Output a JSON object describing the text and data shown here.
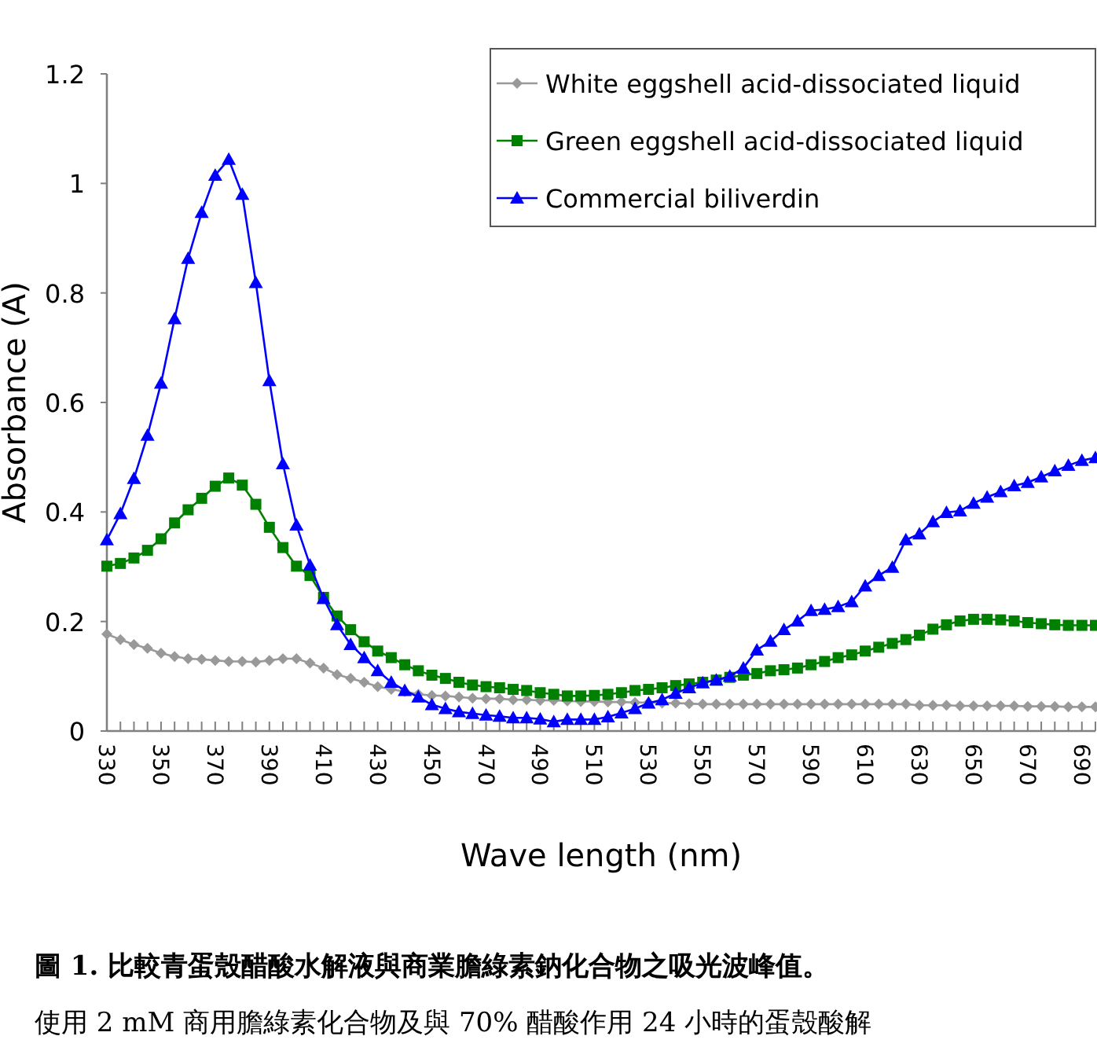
{
  "chart_data": {
    "type": "line",
    "xlabel": "Wave length (nm)",
    "ylabel": "Absorbance (A)",
    "x": [
      330,
      335,
      340,
      345,
      350,
      355,
      360,
      365,
      370,
      375,
      380,
      385,
      390,
      395,
      400,
      405,
      410,
      415,
      420,
      425,
      430,
      435,
      440,
      445,
      450,
      455,
      460,
      465,
      470,
      475,
      480,
      485,
      490,
      495,
      500,
      505,
      510,
      515,
      520,
      525,
      530,
      535,
      540,
      545,
      550,
      555,
      560,
      565,
      570,
      575,
      580,
      585,
      590,
      595,
      600,
      605,
      610,
      615,
      620,
      625,
      630,
      635,
      640,
      645,
      650,
      655,
      660,
      665,
      670,
      675,
      680,
      685,
      690,
      695
    ],
    "xlim": [
      330,
      695
    ],
    "xticks": [
      330,
      {
        "value": 335,
        "label": null
      },
      {
        "value": 340,
        "label": null
      },
      {
        "value": 345,
        "label": null
      },
      350,
      {
        "value": 355,
        "label": null
      },
      {
        "value": 360,
        "label": null
      },
      {
        "value": 365,
        "label": null
      },
      370,
      {
        "value": 375,
        "label": null
      },
      {
        "value": 380,
        "label": null
      },
      {
        "value": 385,
        "label": null
      },
      390,
      {
        "value": 395,
        "label": null
      },
      {
        "value": 400,
        "label": null
      },
      {
        "value": 405,
        "label": null
      },
      410,
      {
        "value": 415,
        "label": null
      },
      {
        "value": 420,
        "label": null
      },
      {
        "value": 425,
        "label": null
      },
      430,
      {
        "value": 435,
        "label": null
      },
      {
        "value": 440,
        "label": null
      },
      {
        "value": 445,
        "label": null
      },
      450,
      {
        "value": 455,
        "label": null
      },
      {
        "value": 460,
        "label": null
      },
      {
        "value": 465,
        "label": null
      },
      470,
      {
        "value": 475,
        "label": null
      },
      {
        "value": 480,
        "label": null
      },
      {
        "value": 485,
        "label": null
      },
      490,
      {
        "value": 495,
        "label": null
      },
      {
        "value": 500,
        "label": null
      },
      {
        "value": 505,
        "label": null
      },
      510,
      {
        "value": 515,
        "label": null
      },
      {
        "value": 520,
        "label": null
      },
      {
        "value": 525,
        "label": null
      },
      530,
      {
        "value": 535,
        "label": null
      },
      {
        "value": 540,
        "label": null
      },
      {
        "value": 545,
        "label": null
      },
      550,
      {
        "value": 555,
        "label": null
      },
      {
        "value": 560,
        "label": null
      },
      {
        "value": 565,
        "label": null
      },
      570,
      {
        "value": 575,
        "label": null
      },
      {
        "value": 580,
        "label": null
      },
      {
        "value": 585,
        "label": null
      },
      590,
      {
        "value": 595,
        "label": null
      },
      {
        "value": 600,
        "label": null
      },
      {
        "value": 605,
        "label": null
      },
      610,
      {
        "value": 615,
        "label": null
      },
      {
        "value": 620,
        "label": null
      },
      {
        "value": 625,
        "label": null
      },
      630,
      {
        "value": 635,
        "label": null
      },
      {
        "value": 640,
        "label": null
      },
      {
        "value": 645,
        "label": null
      },
      650,
      {
        "value": 655,
        "label": null
      },
      {
        "value": 660,
        "label": null
      },
      {
        "value": 665,
        "label": null
      },
      670,
      {
        "value": 675,
        "label": null
      },
      {
        "value": 680,
        "label": null
      },
      {
        "value": 685,
        "label": null
      },
      690,
      {
        "value": 695,
        "label": null
      }
    ],
    "ylim": [
      0,
      1.2
    ],
    "yticks": [
      0,
      0.2,
      0.4,
      0.6,
      0.8,
      1,
      1.2
    ],
    "legend": "top right",
    "series": [
      {
        "name": "White  eggshell acid-dissociated liquid",
        "color": "#999999",
        "marker": "diamond",
        "values": [
          0.177,
          0.167,
          0.158,
          0.151,
          0.142,
          0.136,
          0.132,
          0.131,
          0.129,
          0.127,
          0.127,
          0.126,
          0.129,
          0.132,
          0.132,
          0.124,
          0.115,
          0.103,
          0.096,
          0.089,
          0.081,
          0.076,
          0.072,
          0.067,
          0.065,
          0.064,
          0.062,
          0.06,
          0.059,
          0.059,
          0.057,
          0.057,
          0.056,
          0.056,
          0.055,
          0.054,
          0.054,
          0.053,
          0.053,
          0.052,
          0.052,
          0.051,
          0.051,
          0.05,
          0.049,
          0.049,
          0.049,
          0.049,
          0.049,
          0.049,
          0.049,
          0.049,
          0.049,
          0.049,
          0.049,
          0.049,
          0.049,
          0.049,
          0.049,
          0.049,
          0.047,
          0.047,
          0.047,
          0.046,
          0.046,
          0.046,
          0.046,
          0.046,
          0.045,
          0.045,
          0.045,
          0.044,
          0.044,
          0.044
        ]
      },
      {
        "name": "Green eggshell acid-dissociated liquid",
        "color": "#008000",
        "marker": "square",
        "values": [
          0.301,
          0.306,
          0.316,
          0.33,
          0.351,
          0.38,
          0.404,
          0.425,
          0.447,
          0.462,
          0.449,
          0.414,
          0.372,
          0.335,
          0.301,
          0.284,
          0.244,
          0.21,
          0.185,
          0.163,
          0.146,
          0.134,
          0.121,
          0.11,
          0.102,
          0.096,
          0.089,
          0.084,
          0.081,
          0.079,
          0.076,
          0.074,
          0.07,
          0.067,
          0.064,
          0.064,
          0.065,
          0.067,
          0.07,
          0.074,
          0.076,
          0.079,
          0.083,
          0.086,
          0.089,
          0.093,
          0.098,
          0.102,
          0.105,
          0.11,
          0.112,
          0.115,
          0.121,
          0.127,
          0.134,
          0.139,
          0.146,
          0.153,
          0.16,
          0.167,
          0.175,
          0.186,
          0.194,
          0.201,
          0.204,
          0.204,
          0.203,
          0.201,
          0.198,
          0.196,
          0.194,
          0.193,
          0.193,
          0.193
        ]
      },
      {
        "name": "Commercial biliverdin",
        "color": "#0000ff",
        "marker": "triangle",
        "values": [
          0.349,
          0.397,
          0.461,
          0.54,
          0.635,
          0.753,
          0.863,
          0.947,
          1.015,
          1.044,
          0.98,
          0.819,
          0.64,
          0.488,
          0.376,
          0.303,
          0.242,
          0.194,
          0.158,
          0.134,
          0.11,
          0.089,
          0.074,
          0.062,
          0.048,
          0.041,
          0.035,
          0.032,
          0.029,
          0.027,
          0.024,
          0.024,
          0.022,
          0.017,
          0.021,
          0.021,
          0.021,
          0.026,
          0.033,
          0.041,
          0.051,
          0.057,
          0.069,
          0.079,
          0.088,
          0.093,
          0.1,
          0.115,
          0.148,
          0.164,
          0.185,
          0.201,
          0.22,
          0.222,
          0.227,
          0.236,
          0.265,
          0.284,
          0.299,
          0.349,
          0.36,
          0.382,
          0.399,
          0.402,
          0.416,
          0.427,
          0.437,
          0.448,
          0.454,
          0.464,
          0.475,
          0.485,
          0.494,
          0.499
        ]
      }
    ],
    "annotations": [
      "圖 1. 比較青蛋殼醋酸水解液與商業膽綠素鈉化合物之吸光波峰值。",
      "使用 2 mM 商用膽綠素化合物及與 70% 醋酸作用 24 小時的蛋殼酸解"
    ]
  }
}
